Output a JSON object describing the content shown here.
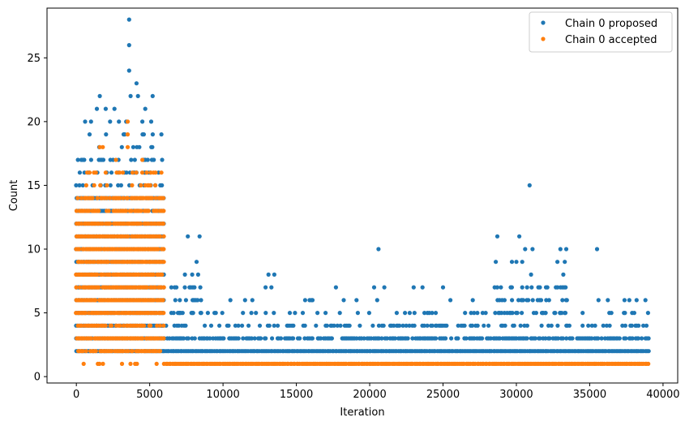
{
  "chart_data": {
    "type": "scatter",
    "xlabel": "Iteration",
    "ylabel": "Count",
    "xlim": [
      -2000,
      41000
    ],
    "ylim": [
      -0.5,
      28.9
    ],
    "x_ticks": [
      0,
      5000,
      10000,
      15000,
      20000,
      25000,
      30000,
      35000,
      40000
    ],
    "y_ticks": [
      0,
      5,
      10,
      15,
      20,
      25
    ],
    "legend": {
      "placement": "top-right"
    },
    "series": [
      {
        "name": "Chain 0 proposed",
        "color": "#1f77b4",
        "bands": [
          {
            "x0": 0,
            "x1": 6000,
            "y": [
              2,
              3,
              4,
              5,
              6,
              7,
              8,
              9,
              10,
              11,
              12,
              13,
              14
            ],
            "density": 0.97
          },
          {
            "x0": 0,
            "x1": 6000,
            "y": [
              15,
              16,
              17
            ],
            "density": 0.32
          },
          {
            "x0": 800,
            "x1": 5600,
            "y": [
              18,
              19
            ],
            "density": 0.12
          },
          {
            "x0": 6000,
            "x1": 39000,
            "y": [
              2
            ],
            "density": 1.0
          },
          {
            "x0": 6000,
            "x1": 39000,
            "y": [
              3
            ],
            "density": 0.7
          },
          {
            "x0": 6000,
            "x1": 39000,
            "y": [
              4
            ],
            "density": 0.32
          },
          {
            "x0": 6000,
            "x1": 39000,
            "y": [
              5
            ],
            "density": 0.16
          },
          {
            "x0": 6000,
            "x1": 39000,
            "y": [
              6
            ],
            "density": 0.06
          },
          {
            "x0": 28500,
            "x1": 33500,
            "y": [
              5,
              6,
              7
            ],
            "density": 0.4
          },
          {
            "x0": 6500,
            "x1": 8500,
            "y": [
              5,
              6,
              7
            ],
            "density": 0.35
          }
        ],
        "points": [
          [
            3600,
            28
          ],
          [
            3600,
            26
          ],
          [
            3600,
            24
          ],
          [
            4100,
            23
          ],
          [
            3700,
            22
          ],
          [
            4200,
            22
          ],
          [
            5200,
            22
          ],
          [
            1600,
            22
          ],
          [
            1400,
            21
          ],
          [
            2000,
            21
          ],
          [
            2600,
            21
          ],
          [
            4700,
            21
          ],
          [
            600,
            20
          ],
          [
            3400,
            20
          ],
          [
            4500,
            20
          ],
          [
            5100,
            20
          ],
          [
            2300,
            20
          ],
          [
            1000,
            20
          ],
          [
            2900,
            20
          ],
          [
            3300,
            19
          ],
          [
            4600,
            19
          ],
          [
            5800,
            19
          ],
          [
            900,
            19
          ],
          [
            7600,
            11
          ],
          [
            8400,
            11
          ],
          [
            8200,
            9
          ],
          [
            7400,
            8
          ],
          [
            7900,
            8
          ],
          [
            8300,
            8
          ],
          [
            13100,
            8
          ],
          [
            13500,
            8
          ],
          [
            12900,
            7
          ],
          [
            13300,
            7
          ],
          [
            17700,
            7
          ],
          [
            20300,
            7
          ],
          [
            21000,
            7
          ],
          [
            23000,
            7
          ],
          [
            23600,
            7
          ],
          [
            25000,
            7
          ],
          [
            20600,
            10
          ],
          [
            28700,
            11
          ],
          [
            30200,
            11
          ],
          [
            30900,
            15
          ],
          [
            28600,
            9
          ],
          [
            29700,
            9
          ],
          [
            30000,
            9
          ],
          [
            30600,
            10
          ],
          [
            31100,
            10
          ],
          [
            30400,
            9
          ],
          [
            33000,
            10
          ],
          [
            33400,
            10
          ],
          [
            32800,
            9
          ],
          [
            33300,
            9
          ],
          [
            35500,
            10
          ],
          [
            31000,
            8
          ],
          [
            33200,
            8
          ],
          [
            31500,
            7
          ],
          [
            35600,
            6
          ],
          [
            37700,
            6
          ],
          [
            38200,
            6
          ],
          [
            38800,
            6
          ],
          [
            10500,
            6
          ],
          [
            11500,
            6
          ],
          [
            12000,
            6
          ],
          [
            15600,
            6
          ],
          [
            16100,
            6
          ],
          [
            19100,
            6
          ],
          [
            25500,
            6
          ],
          [
            26500,
            5
          ],
          [
            27700,
            5
          ],
          [
            37400,
            5
          ]
        ]
      },
      {
        "name": "Chain 0 accepted",
        "color": "#ff7f0e",
        "bands": [
          {
            "x0": 0,
            "x1": 6000,
            "y": [
              3,
              5,
              6,
              7,
              8,
              9,
              10,
              11,
              12
            ],
            "density": 0.97
          },
          {
            "x0": 0,
            "x1": 6000,
            "y": [
              2,
              4,
              13,
              14
            ],
            "density": 0.75
          },
          {
            "x0": 0,
            "x1": 6000,
            "y": [
              15,
              16
            ],
            "density": 0.12
          },
          {
            "x0": 500,
            "x1": 6000,
            "y": [
              1
            ],
            "density": 0.15
          },
          {
            "x0": 6000,
            "x1": 39000,
            "y": [
              1
            ],
            "density": 1.0
          }
        ],
        "points": [
          [
            3500,
            20
          ],
          [
            3500,
            19
          ],
          [
            1600,
            18
          ],
          [
            1800,
            18
          ],
          [
            2700,
            17
          ],
          [
            3500,
            18
          ],
          [
            4500,
            17
          ],
          [
            5800,
            16
          ],
          [
            4800,
            16
          ],
          [
            2000,
            16
          ],
          [
            1200,
            16
          ],
          [
            900,
            16
          ],
          [
            4400,
            15
          ],
          [
            3800,
            15
          ]
        ]
      }
    ]
  }
}
